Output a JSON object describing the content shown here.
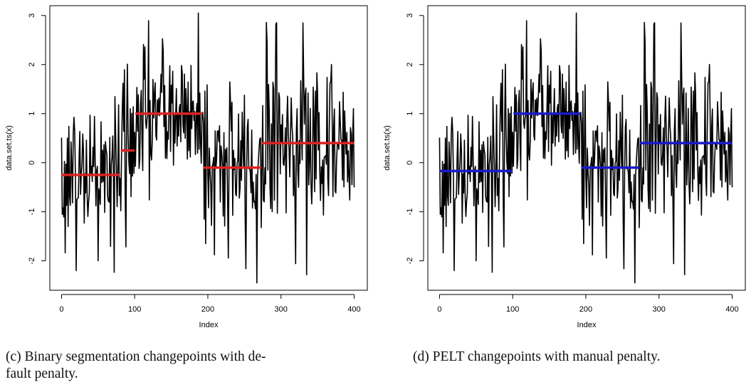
{
  "chart_data": [
    {
      "id": "c",
      "type": "line",
      "title": "",
      "xlabel": "Index",
      "ylabel": "data.set.ts(x)",
      "xlim": [
        -16,
        418
      ],
      "ylim": [
        -2.6,
        3.2
      ],
      "xticks": [
        "0",
        "100",
        "200",
        "300",
        "400"
      ],
      "xtick_values": [
        0,
        100,
        200,
        300,
        400
      ],
      "yticks": [
        "-2",
        "-1",
        "0",
        "1",
        "2",
        "3"
      ],
      "ytick_values": [
        -2,
        -1,
        0,
        1,
        2,
        3
      ],
      "grid": false,
      "series_color": "#000000",
      "segment_color": "#dd2222",
      "series": [
        {
          "x_start": 0,
          "x_step": 1,
          "segments": [
            {
              "x_start": 0,
              "x_end": 80,
              "mean": -0.25,
              "sd": 0.82
            },
            {
              "x_start": 81,
              "x_end": 100,
              "mean": 0.25,
              "sd": 0.9
            },
            {
              "x_start": 101,
              "x_end": 193,
              "mean": 1.0,
              "sd": 0.75
            },
            {
              "x_start": 194,
              "x_end": 273,
              "mean": -0.1,
              "sd": 0.85
            },
            {
              "x_start": 274,
              "x_end": 400,
              "mean": 0.4,
              "sd": 0.95
            }
          ],
          "min": -2.45,
          "max": 3.05
        }
      ],
      "changepoint_means": [
        {
          "x_start": 0,
          "x_end": 80,
          "value": -0.25
        },
        {
          "x_start": 81,
          "x_end": 100,
          "value": 0.25
        },
        {
          "x_start": 101,
          "x_end": 193,
          "value": 1.0
        },
        {
          "x_start": 194,
          "x_end": 273,
          "value": -0.1
        },
        {
          "x_start": 274,
          "x_end": 400,
          "value": 0.4
        }
      ]
    },
    {
      "id": "d",
      "type": "line",
      "title": "",
      "xlabel": "Index",
      "ylabel": "data.set.ts(x)",
      "xlim": [
        -16,
        418
      ],
      "ylim": [
        -2.6,
        3.2
      ],
      "xticks": [
        "0",
        "100",
        "200",
        "300",
        "400"
      ],
      "xtick_values": [
        0,
        100,
        200,
        300,
        400
      ],
      "yticks": [
        "-2",
        "-1",
        "0",
        "1",
        "2",
        "3"
      ],
      "ytick_values": [
        -2,
        -1,
        0,
        1,
        2,
        3
      ],
      "grid": false,
      "series_color": "#000000",
      "segment_color": "#1a1acc",
      "series": [
        {
          "x_start": 0,
          "x_step": 1,
          "segments": [
            {
              "x_start": 0,
              "x_end": 80,
              "mean": -0.25,
              "sd": 0.82
            },
            {
              "x_start": 81,
              "x_end": 100,
              "mean": 0.25,
              "sd": 0.9
            },
            {
              "x_start": 101,
              "x_end": 193,
              "mean": 1.0,
              "sd": 0.75
            },
            {
              "x_start": 194,
              "x_end": 273,
              "mean": -0.1,
              "sd": 0.85
            },
            {
              "x_start": 274,
              "x_end": 400,
              "mean": 0.4,
              "sd": 0.95
            }
          ],
          "min": -2.45,
          "max": 3.05
        }
      ],
      "changepoint_means": [
        {
          "x_start": 0,
          "x_end": 100,
          "value": -0.17
        },
        {
          "x_start": 101,
          "x_end": 193,
          "value": 1.0
        },
        {
          "x_start": 194,
          "x_end": 273,
          "value": -0.1
        },
        {
          "x_start": 274,
          "x_end": 400,
          "value": 0.4
        }
      ]
    }
  ],
  "captions": {
    "c_line1": "(c) Binary segmentation changepoints with de-",
    "c_line2": "fault penalty.",
    "d_line1": "(d) PELT changepoints with manual penalty."
  }
}
